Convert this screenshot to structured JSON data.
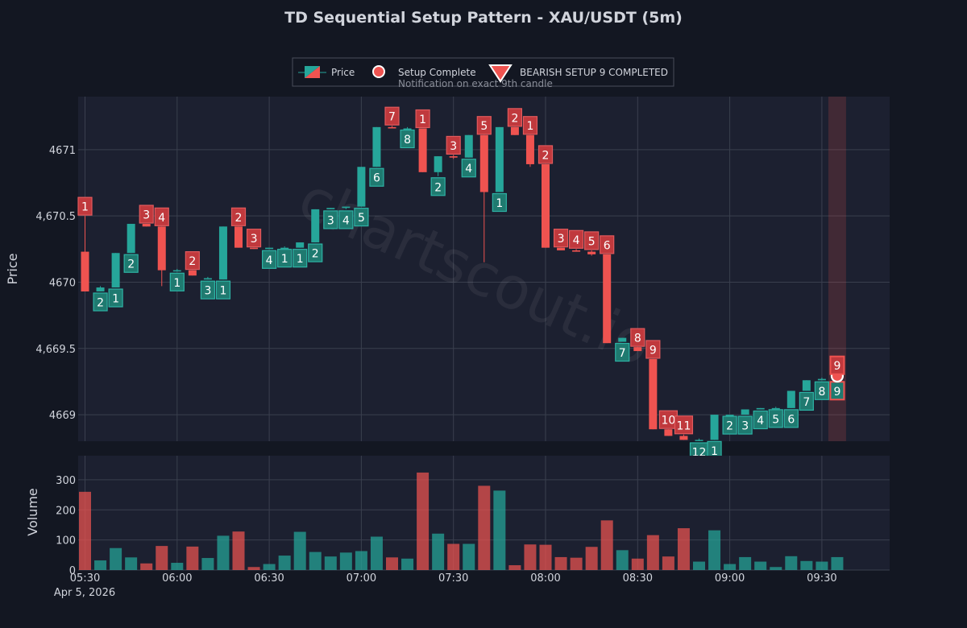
{
  "chart_data": {
    "type": "candlestick",
    "title": "TD Sequential Setup Pattern - XAU/USDT (5m)",
    "ylabel": "Price",
    "ylabel_volume": "Volume",
    "date_label": "Apr 5, 2026",
    "watermark": "chartscout.io",
    "ylim": [
      4668.8,
      4671.4
    ],
    "volume_ylim": [
      0,
      380
    ],
    "y_ticks": [
      4669,
      4669.5,
      4670,
      4670.5,
      4671
    ],
    "y_tick_labels": [
      "4669",
      "4,669.5",
      "4670",
      "4,670.5",
      "4671"
    ],
    "volume_ticks": [
      0,
      100,
      200,
      300
    ],
    "x_ticks": [
      0,
      6,
      12,
      18,
      24,
      30,
      36,
      42,
      48
    ],
    "x_tick_labels": [
      "05:30",
      "06:00",
      "06:30",
      "07:00",
      "07:30",
      "08:00",
      "08:30",
      "09:00",
      "09:30"
    ],
    "highlight_index": 49,
    "legend": {
      "price": "Price",
      "setup": "Setup Complete",
      "bearish": "BEARISH SETUP 9 COMPLETED",
      "bearish_sub": "Notification on exact 9th candle",
      "position": "top-center"
    },
    "colors": {
      "up": "#26a69a",
      "down": "#ef5350",
      "up_label": "#1f7a70",
      "down_label": "#c0393d",
      "highlight": "#ef5350"
    },
    "candles": [
      {
        "o": 4670.23,
        "h": 4670.5,
        "l": 4669.93,
        "c": 4669.93,
        "v": 260,
        "s": 1
      },
      {
        "o": 4669.93,
        "h": 4669.97,
        "l": 4669.93,
        "c": 4669.96,
        "v": 32,
        "s": 2
      },
      {
        "o": 4669.96,
        "h": 4670.22,
        "l": 4669.96,
        "c": 4670.22,
        "v": 73,
        "s": 1
      },
      {
        "o": 4670.22,
        "h": 4670.44,
        "l": 4670.22,
        "c": 4670.44,
        "v": 42,
        "s": 2
      },
      {
        "o": 4670.44,
        "h": 4670.44,
        "l": 4670.42,
        "c": 4670.42,
        "v": 22,
        "s": 3
      },
      {
        "o": 4670.42,
        "h": 4670.42,
        "l": 4669.97,
        "c": 4670.09,
        "v": 80,
        "s": 4
      },
      {
        "o": 4670.09,
        "h": 4670.1,
        "l": 4670.08,
        "c": 4670.09,
        "v": 24,
        "s": 1
      },
      {
        "o": 4670.09,
        "h": 4670.09,
        "l": 4670.05,
        "c": 4670.05,
        "v": 78,
        "s": 2
      },
      {
        "o": 4670.02,
        "h": 4670.04,
        "l": 4670.02,
        "c": 4670.03,
        "v": 40,
        "s": 3
      },
      {
        "o": 4670.02,
        "h": 4670.42,
        "l": 4670.02,
        "c": 4670.42,
        "v": 114,
        "s": 1
      },
      {
        "o": 4670.42,
        "h": 4670.42,
        "l": 4670.26,
        "c": 4670.26,
        "v": 128,
        "s": 2
      },
      {
        "o": 4670.26,
        "h": 4670.26,
        "l": 4670.25,
        "c": 4670.25,
        "v": 10,
        "s": 3
      },
      {
        "o": 4670.25,
        "h": 4670.26,
        "l": 4670.25,
        "c": 4670.26,
        "v": 20,
        "s": 4
      },
      {
        "o": 4670.26,
        "h": 4670.27,
        "l": 4670.26,
        "c": 4670.26,
        "v": 48,
        "s": 1
      },
      {
        "o": 4670.26,
        "h": 4670.3,
        "l": 4670.26,
        "c": 4670.3,
        "v": 127,
        "s": 1
      },
      {
        "o": 4670.3,
        "h": 4670.55,
        "l": 4670.3,
        "c": 4670.55,
        "v": 60,
        "s": 2
      },
      {
        "o": 4670.55,
        "h": 4670.56,
        "l": 4670.55,
        "c": 4670.56,
        "v": 45,
        "s": 3
      },
      {
        "o": 4670.56,
        "h": 4670.57,
        "l": 4670.55,
        "c": 4670.57,
        "v": 58,
        "s": 4
      },
      {
        "o": 4670.57,
        "h": 4670.87,
        "l": 4670.57,
        "c": 4670.87,
        "v": 63,
        "s": 5
      },
      {
        "o": 4670.87,
        "h": 4671.17,
        "l": 4670.87,
        "c": 4671.17,
        "v": 111,
        "s": 6
      },
      {
        "o": 4671.17,
        "h": 4671.18,
        "l": 4671.16,
        "c": 4671.16,
        "v": 42,
        "s": 7
      },
      {
        "o": 4671.16,
        "h": 4671.17,
        "l": 4671.16,
        "c": 4671.16,
        "v": 38,
        "s": 8
      },
      {
        "o": 4671.16,
        "h": 4671.16,
        "l": 4670.83,
        "c": 4670.83,
        "v": 324,
        "s": 1
      },
      {
        "o": 4670.83,
        "h": 4670.95,
        "l": 4670.8,
        "c": 4670.95,
        "v": 121,
        "s": 2
      },
      {
        "o": 4670.95,
        "h": 4670.96,
        "l": 4670.93,
        "c": 4670.94,
        "v": 87,
        "s": 3
      },
      {
        "o": 4670.94,
        "h": 4671.11,
        "l": 4670.94,
        "c": 4671.11,
        "v": 87,
        "s": 4
      },
      {
        "o": 4671.11,
        "h": 4671.11,
        "l": 4670.15,
        "c": 4670.68,
        "v": 280,
        "s": 5
      },
      {
        "o": 4670.68,
        "h": 4671.17,
        "l": 4670.68,
        "c": 4671.17,
        "v": 264,
        "s": 1
      },
      {
        "o": 4671.17,
        "h": 4671.17,
        "l": 4671.11,
        "c": 4671.11,
        "v": 16,
        "s": 2
      },
      {
        "o": 4671.11,
        "h": 4671.11,
        "l": 4670.87,
        "c": 4670.89,
        "v": 85,
        "s": 1
      },
      {
        "o": 4670.89,
        "h": 4670.89,
        "l": 4670.26,
        "c": 4670.26,
        "v": 84,
        "s": 2
      },
      {
        "o": 4670.26,
        "h": 4670.26,
        "l": 4670.24,
        "c": 4670.24,
        "v": 43,
        "s": 3
      },
      {
        "o": 4670.24,
        "h": 4670.25,
        "l": 4670.23,
        "c": 4670.23,
        "v": 41,
        "s": 4
      },
      {
        "o": 4670.23,
        "h": 4670.24,
        "l": 4670.2,
        "c": 4670.21,
        "v": 77,
        "s": 5
      },
      {
        "o": 4670.21,
        "h": 4670.21,
        "l": 4669.54,
        "c": 4669.54,
        "v": 165,
        "s": 6
      },
      {
        "o": 4669.55,
        "h": 4669.58,
        "l": 4669.55,
        "c": 4669.58,
        "v": 66,
        "s": 7
      },
      {
        "o": 4669.51,
        "h": 4669.51,
        "l": 4669.48,
        "c": 4669.48,
        "v": 38,
        "s": 8
      },
      {
        "o": 4669.42,
        "h": 4669.42,
        "l": 4668.89,
        "c": 4668.89,
        "v": 116,
        "s": 9
      },
      {
        "o": 4668.89,
        "h": 4668.89,
        "l": 4668.84,
        "c": 4668.84,
        "v": 45,
        "s": 10
      },
      {
        "o": 4668.84,
        "h": 4668.85,
        "l": 4668.81,
        "c": 4668.81,
        "v": 139,
        "s": 11
      },
      {
        "o": 4668.81,
        "h": 4668.82,
        "l": 4668.8,
        "c": 4668.81,
        "v": 28,
        "s": 12
      },
      {
        "o": 4668.81,
        "h": 4669,
        "l": 4668.81,
        "c": 4669,
        "v": 132,
        "s": 1
      },
      {
        "o": 4669,
        "h": 4669,
        "l": 4669,
        "c": 4669,
        "v": 20,
        "s": 2
      },
      {
        "o": 4669,
        "h": 4669.04,
        "l": 4669,
        "c": 4669.04,
        "v": 43,
        "s": 3
      },
      {
        "o": 4669.04,
        "h": 4669.05,
        "l": 4669.04,
        "c": 4669.05,
        "v": 28,
        "s": 4
      },
      {
        "o": 4669.05,
        "h": 4669.06,
        "l": 4669.05,
        "c": 4669.05,
        "v": 10,
        "s": 5
      },
      {
        "o": 4669.05,
        "h": 4669.18,
        "l": 4669.05,
        "c": 4669.18,
        "v": 46,
        "s": 6
      },
      {
        "o": 4669.18,
        "h": 4669.26,
        "l": 4669.18,
        "c": 4669.26,
        "v": 30,
        "s": 7
      },
      {
        "o": 4669.26,
        "h": 4669.28,
        "l": 4669.26,
        "c": 4669.27,
        "v": 28,
        "s": 8
      },
      {
        "o": 4669.27,
        "h": 4669.3,
        "l": 4669.26,
        "c": 4669.28,
        "v": 43,
        "s": 9
      }
    ]
  }
}
